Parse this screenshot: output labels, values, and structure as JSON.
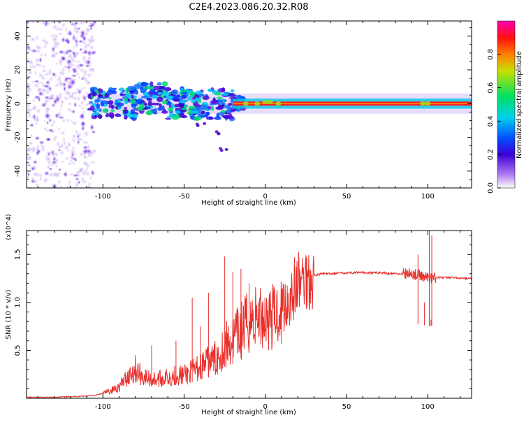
{
  "title": "C2E4.2023.086.20.32.R08",
  "colors": {
    "snr_line": "#e8302c",
    "spectro_bg": "#ffffff",
    "frame": "#000000"
  },
  "chart_data": [
    {
      "type": "heatmap",
      "name": "spectrogram",
      "xlabel": "Height of straight line (km)",
      "ylabel": "Frequency (Hz)",
      "xlim": [
        -147,
        127
      ],
      "ylim": [
        -50,
        49
      ],
      "x_ticks": [
        -100,
        -50,
        0,
        50,
        100
      ],
      "x_tick_labels": [
        "-100",
        "-50",
        "0",
        "50",
        "100"
      ],
      "y_ticks": [
        -40,
        -20,
        0,
        20,
        40
      ],
      "y_tick_labels": [
        "-40",
        "-20",
        "0",
        "20",
        "40"
      ],
      "colorbar": {
        "label": "Normalized spectral amplitude",
        "range": [
          0.0,
          1.0
        ],
        "ticks": [
          0.0,
          0.2,
          0.4,
          0.6,
          0.8
        ],
        "tick_labels": [
          "0.0",
          "0.2",
          "0.4",
          "0.6",
          "0.8"
        ],
        "colormap": "rainbow (white-purple-blue-cyan-green-yellow-red-magenta)"
      },
      "features": {
        "noise_region_x": [
          -147,
          -105
        ],
        "carrier_frequency_hz": 0,
        "carrier_start_x": -105,
        "strong_band_x": [
          -20,
          127
        ],
        "doppler_trail": [
          [
            -50,
            -5
          ],
          [
            -40,
            -12
          ],
          [
            -30,
            -18
          ],
          [
            -25,
            -28
          ]
        ]
      }
    },
    {
      "type": "line",
      "name": "snr",
      "xlabel": "Height of straight line (km)",
      "ylabel": "SNR (10 * v/v)",
      "y_multiplier": "(x10^4)",
      "xlim": [
        -147,
        127
      ],
      "ylim": [
        0.0,
        1.75
      ],
      "x_ticks": [
        -100,
        -50,
        0,
        50,
        100
      ],
      "x_tick_labels": [
        "-100",
        "-50",
        "0",
        "50",
        "100"
      ],
      "y_ticks": [
        0.5,
        1.0,
        1.5
      ],
      "y_tick_labels": [
        "0.5",
        "1.0",
        "1.5"
      ],
      "series": [
        {
          "x": [
            -147,
            -130,
            -115,
            -105,
            -100,
            -95,
            -90,
            -85,
            -80,
            -75,
            -70,
            -65,
            -60,
            -55,
            -50,
            -45,
            -40,
            -35,
            -30,
            -25,
            -20,
            -15,
            -10,
            -5,
            0,
            5,
            10,
            15,
            20,
            25,
            30,
            35,
            40,
            50,
            60,
            70,
            80,
            90,
            95,
            98,
            100,
            101,
            102,
            105,
            110,
            115,
            120,
            127
          ],
          "y": [
            0.01,
            0.01,
            0.02,
            0.03,
            0.05,
            0.08,
            0.12,
            0.22,
            0.3,
            0.22,
            0.2,
            0.2,
            0.22,
            0.24,
            0.24,
            0.28,
            0.33,
            0.38,
            0.42,
            0.55,
            0.6,
            0.7,
            0.8,
            0.85,
            0.85,
            0.85,
            0.95,
            1.05,
            1.2,
            1.25,
            1.28,
            1.3,
            1.3,
            1.31,
            1.31,
            1.31,
            1.3,
            1.3,
            1.28,
            1.27,
            1.26,
            1.25,
            1.26,
            1.26,
            1.26,
            1.26,
            1.25,
            1.25
          ],
          "spikes": [
            [
              -25,
              1.48
            ],
            [
              -20,
              1.32
            ],
            [
              -15,
              1.35
            ],
            [
              -10,
              1.2
            ],
            [
              -35,
              1.1
            ],
            [
              -45,
              1.05
            ],
            [
              -80,
              0.45
            ],
            [
              -70,
              0.55
            ],
            [
              -55,
              0.6
            ],
            [
              -40,
              0.75
            ],
            [
              10,
              1.15
            ],
            [
              94,
              1.5
            ],
            [
              98,
              1.0
            ],
            [
              101,
              1.75
            ],
            [
              102,
              0.82
            ],
            [
              102.5,
              1.7
            ]
          ]
        }
      ]
    }
  ]
}
